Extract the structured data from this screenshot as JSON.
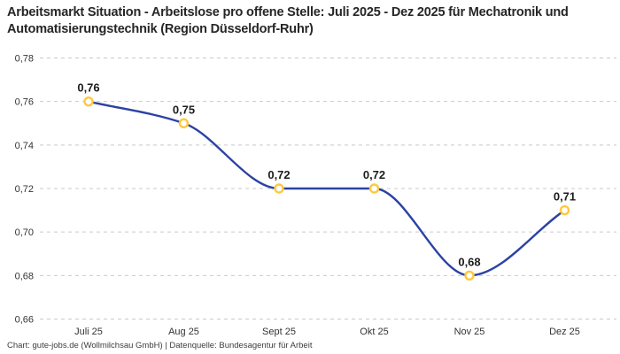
{
  "chart_data": {
    "type": "line",
    "title": "Arbeitsmarkt Situation - Arbeitslose pro offene Stelle: Juli 2025 - Dez 2025 für Mechatronik und Automatisierungstechnik (Region Düsseldorf-Ruhr)",
    "categories": [
      "Juli 25",
      "Aug 25",
      "Sept 25",
      "Okt 25",
      "Nov 25",
      "Dez 25"
    ],
    "values": [
      0.76,
      0.75,
      0.72,
      0.72,
      0.68,
      0.71
    ],
    "point_labels": [
      "0,76",
      "0,75",
      "0,72",
      "0,72",
      "0,68",
      "0,71"
    ],
    "xlabel": "",
    "ylabel": "",
    "ylim": [
      0.66,
      0.78
    ],
    "ytick_step": 0.02,
    "ytick_labels": [
      "0,66",
      "0,68",
      "0,70",
      "0,72",
      "0,74",
      "0,76",
      "0,78"
    ],
    "grid": "horizontal-dashed",
    "legend": "none",
    "line_interpolation": "monotone",
    "colors": {
      "line": "#2b42a5",
      "marker_stroke": "#ffc83d",
      "marker_fill": "#ffffff",
      "grid": "#c9c9c9",
      "axis_text": "#333333",
      "point_label_text": "#1c1c1c",
      "title_text": "#262626"
    }
  },
  "footer": {
    "text": "Chart: gute-jobs.de (Wollmilchsau GmbH) | Datenquelle: Bundesagentur für Arbeit"
  }
}
